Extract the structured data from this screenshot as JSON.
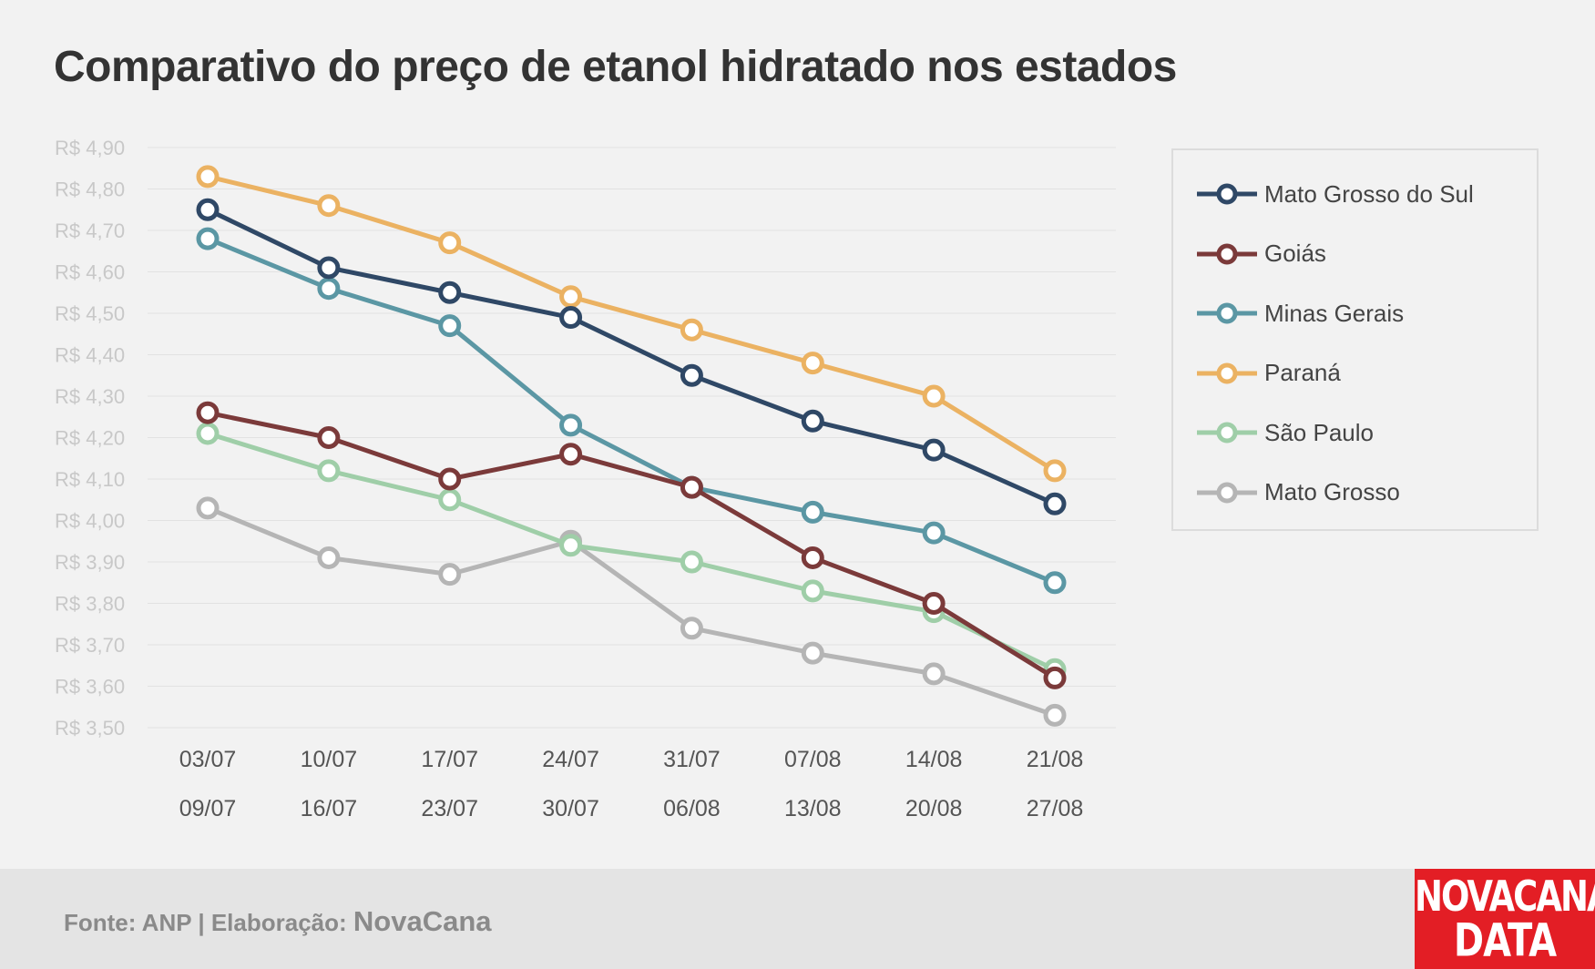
{
  "chart_data": {
    "type": "line",
    "title": "Comparativo do preço de etanol hidratado nos estados",
    "xlabel": "",
    "ylabel": "",
    "ylim": [
      3.5,
      4.9
    ],
    "y_ticks": [
      "R$ 4,90",
      "R$ 4,80",
      "R$ 4,70",
      "R$ 4,60",
      "R$ 4,50",
      "R$ 4,40",
      "R$ 4,30",
      "R$ 4,20",
      "R$ 4,10",
      "R$ 4,00",
      "R$ 3,90",
      "R$ 3,80",
      "R$ 3,70",
      "R$ 3,60",
      "R$ 3,50"
    ],
    "categories": [
      {
        "start": "03/07",
        "end": "09/07"
      },
      {
        "start": "10/07",
        "end": "16/07"
      },
      {
        "start": "17/07",
        "end": "23/07"
      },
      {
        "start": "24/07",
        "end": "30/07"
      },
      {
        "start": "31/07",
        "end": "06/08"
      },
      {
        "start": "07/08",
        "end": "13/08"
      },
      {
        "start": "14/08",
        "end": "20/08"
      },
      {
        "start": "21/08",
        "end": "27/08"
      }
    ],
    "grid": true,
    "legend": "right",
    "series": [
      {
        "name": "Mato Grosso do Sul",
        "color": "#2f4866",
        "values": [
          4.75,
          4.61,
          4.55,
          4.49,
          4.35,
          4.24,
          4.17,
          4.04
        ]
      },
      {
        "name": "Goiás",
        "color": "#7b3a3a",
        "values": [
          4.26,
          4.2,
          4.1,
          4.16,
          4.08,
          3.91,
          3.8,
          3.62
        ]
      },
      {
        "name": "Minas Gerais",
        "color": "#5b97a4",
        "values": [
          4.68,
          4.56,
          4.47,
          4.23,
          4.08,
          4.02,
          3.97,
          3.85
        ]
      },
      {
        "name": "Paraná",
        "color": "#ebb262",
        "values": [
          4.83,
          4.76,
          4.67,
          4.54,
          4.46,
          4.38,
          4.3,
          4.12
        ]
      },
      {
        "name": "São Paulo",
        "color": "#9fcea8",
        "values": [
          4.21,
          4.12,
          4.05,
          3.94,
          3.9,
          3.83,
          3.78,
          3.64
        ]
      },
      {
        "name": "Mato Grosso",
        "color": "#b5b5b5",
        "values": [
          4.03,
          3.91,
          3.87,
          3.95,
          3.74,
          3.68,
          3.63,
          3.53
        ]
      }
    ]
  },
  "footer": {
    "source_label": "Fonte: ANP | Elaboração:",
    "brand": "NovaCana"
  },
  "logo": {
    "line1": "NOVACANA",
    "line2": "DATA"
  }
}
